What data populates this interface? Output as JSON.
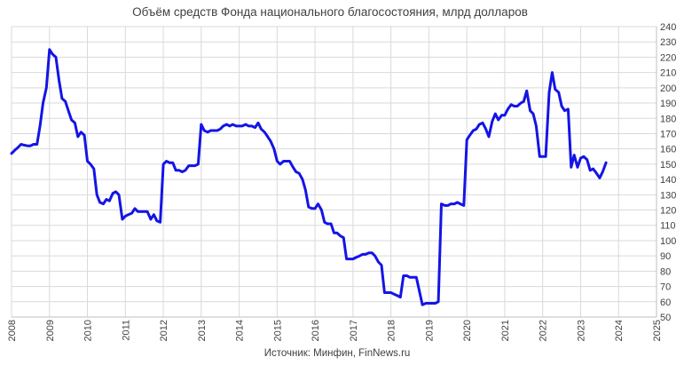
{
  "chart_data": {
    "type": "line",
    "title": "Объём средств Фонда национального благосостояния, млрд долларов",
    "source": "Источник: Минфин, FinNews.ru",
    "xlabel": "",
    "ylabel": "",
    "xlim": [
      2008,
      2025
    ],
    "ylim": [
      50,
      240
    ],
    "y_ticks": [
      50,
      60,
      70,
      80,
      90,
      100,
      110,
      120,
      130,
      140,
      150,
      160,
      170,
      180,
      190,
      200,
      210,
      220,
      230,
      240
    ],
    "x_ticks": [
      "2008",
      "2009",
      "2010",
      "2011",
      "2012",
      "2013",
      "2014",
      "2015",
      "2016",
      "2017",
      "2018",
      "2019",
      "2020",
      "2021",
      "2022",
      "2023",
      "2024",
      "2025"
    ],
    "y_axis_position": "right",
    "grid": true,
    "series": [
      {
        "color": "#1414e6",
        "points": [
          [
            2008.0,
            157
          ],
          [
            2008.08,
            159
          ],
          [
            2008.17,
            161
          ],
          [
            2008.25,
            163
          ],
          [
            2008.33,
            162.5
          ],
          [
            2008.42,
            162
          ],
          [
            2008.5,
            162
          ],
          [
            2008.58,
            163
          ],
          [
            2008.67,
            163
          ],
          [
            2008.75,
            175
          ],
          [
            2008.83,
            190
          ],
          [
            2008.92,
            200
          ],
          [
            2009.0,
            225
          ],
          [
            2009.08,
            222
          ],
          [
            2009.17,
            220
          ],
          [
            2009.25,
            205
          ],
          [
            2009.33,
            193
          ],
          [
            2009.42,
            191
          ],
          [
            2009.5,
            185
          ],
          [
            2009.58,
            179
          ],
          [
            2009.67,
            177
          ],
          [
            2009.75,
            168
          ],
          [
            2009.83,
            171
          ],
          [
            2009.92,
            169
          ],
          [
            2010.0,
            152
          ],
          [
            2010.08,
            150
          ],
          [
            2010.17,
            147
          ],
          [
            2010.25,
            130
          ],
          [
            2010.33,
            125
          ],
          [
            2010.42,
            124
          ],
          [
            2010.5,
            127
          ],
          [
            2010.58,
            126
          ],
          [
            2010.67,
            131
          ],
          [
            2010.75,
            132
          ],
          [
            2010.83,
            130
          ],
          [
            2010.92,
            114
          ],
          [
            2011.0,
            116
          ],
          [
            2011.08,
            117
          ],
          [
            2011.17,
            118
          ],
          [
            2011.25,
            121
          ],
          [
            2011.33,
            119
          ],
          [
            2011.42,
            119
          ],
          [
            2011.5,
            119
          ],
          [
            2011.58,
            119
          ],
          [
            2011.67,
            114
          ],
          [
            2011.75,
            117
          ],
          [
            2011.83,
            113
          ],
          [
            2011.92,
            112
          ],
          [
            2012.0,
            150
          ],
          [
            2012.08,
            152
          ],
          [
            2012.17,
            151
          ],
          [
            2012.25,
            151
          ],
          [
            2012.33,
            146
          ],
          [
            2012.42,
            146
          ],
          [
            2012.5,
            145
          ],
          [
            2012.58,
            146
          ],
          [
            2012.67,
            149
          ],
          [
            2012.75,
            149
          ],
          [
            2012.83,
            149
          ],
          [
            2012.92,
            150
          ],
          [
            2013.0,
            176
          ],
          [
            2013.08,
            172
          ],
          [
            2013.17,
            171
          ],
          [
            2013.25,
            172
          ],
          [
            2013.33,
            172
          ],
          [
            2013.42,
            172
          ],
          [
            2013.5,
            173
          ],
          [
            2013.58,
            175
          ],
          [
            2013.67,
            176
          ],
          [
            2013.75,
            175
          ],
          [
            2013.83,
            176
          ],
          [
            2013.92,
            175
          ],
          [
            2014.0,
            175
          ],
          [
            2014.08,
            175
          ],
          [
            2014.17,
            176
          ],
          [
            2014.25,
            175
          ],
          [
            2014.33,
            175
          ],
          [
            2014.42,
            174
          ],
          [
            2014.5,
            177
          ],
          [
            2014.58,
            173
          ],
          [
            2014.67,
            171
          ],
          [
            2014.75,
            168
          ],
          [
            2014.83,
            165
          ],
          [
            2014.92,
            160
          ],
          [
            2015.0,
            152
          ],
          [
            2015.08,
            150
          ],
          [
            2015.17,
            152
          ],
          [
            2015.25,
            152
          ],
          [
            2015.33,
            152
          ],
          [
            2015.42,
            148
          ],
          [
            2015.5,
            145
          ],
          [
            2015.58,
            144
          ],
          [
            2015.67,
            140
          ],
          [
            2015.75,
            133
          ],
          [
            2015.83,
            122
          ],
          [
            2015.92,
            121
          ],
          [
            2016.0,
            121
          ],
          [
            2016.08,
            124
          ],
          [
            2016.17,
            120
          ],
          [
            2016.25,
            112
          ],
          [
            2016.33,
            111
          ],
          [
            2016.42,
            111
          ],
          [
            2016.5,
            105
          ],
          [
            2016.58,
            105
          ],
          [
            2016.67,
            103
          ],
          [
            2016.75,
            102
          ],
          [
            2016.83,
            88
          ],
          [
            2016.92,
            88
          ],
          [
            2017.0,
            88
          ],
          [
            2017.08,
            89
          ],
          [
            2017.17,
            90
          ],
          [
            2017.25,
            91
          ],
          [
            2017.33,
            91
          ],
          [
            2017.42,
            92
          ],
          [
            2017.5,
            92
          ],
          [
            2017.58,
            90
          ],
          [
            2017.67,
            86
          ],
          [
            2017.75,
            84
          ],
          [
            2017.83,
            66
          ],
          [
            2017.92,
            66
          ],
          [
            2018.0,
            66
          ],
          [
            2018.08,
            65
          ],
          [
            2018.17,
            64
          ],
          [
            2018.25,
            63
          ],
          [
            2018.33,
            77
          ],
          [
            2018.42,
            77
          ],
          [
            2018.5,
            76
          ],
          [
            2018.58,
            76
          ],
          [
            2018.67,
            76
          ],
          [
            2018.75,
            67
          ],
          [
            2018.83,
            58
          ],
          [
            2018.92,
            59
          ],
          [
            2019.0,
            59
          ],
          [
            2019.08,
            59
          ],
          [
            2019.17,
            59
          ],
          [
            2019.25,
            60
          ],
          [
            2019.33,
            124
          ],
          [
            2019.42,
            123
          ],
          [
            2019.5,
            123
          ],
          [
            2019.58,
            124
          ],
          [
            2019.67,
            124
          ],
          [
            2019.75,
            125
          ],
          [
            2019.83,
            124
          ],
          [
            2019.92,
            123
          ],
          [
            2020.0,
            166
          ],
          [
            2020.08,
            169
          ],
          [
            2020.17,
            172
          ],
          [
            2020.25,
            173
          ],
          [
            2020.33,
            176
          ],
          [
            2020.42,
            177
          ],
          [
            2020.5,
            173
          ],
          [
            2020.58,
            168
          ],
          [
            2020.67,
            178
          ],
          [
            2020.75,
            183
          ],
          [
            2020.83,
            179
          ],
          [
            2020.92,
            182
          ],
          [
            2021.0,
            182
          ],
          [
            2021.08,
            186
          ],
          [
            2021.17,
            189
          ],
          [
            2021.25,
            188
          ],
          [
            2021.33,
            188
          ],
          [
            2021.42,
            190
          ],
          [
            2021.5,
            191
          ],
          [
            2021.58,
            198
          ],
          [
            2021.67,
            185
          ],
          [
            2021.75,
            183
          ],
          [
            2021.83,
            175
          ],
          [
            2021.92,
            155
          ],
          [
            2022.0,
            155
          ],
          [
            2022.08,
            155
          ],
          [
            2022.17,
            197
          ],
          [
            2022.25,
            210
          ],
          [
            2022.33,
            199
          ],
          [
            2022.42,
            197
          ],
          [
            2022.5,
            188
          ],
          [
            2022.58,
            185
          ],
          [
            2022.67,
            186
          ],
          [
            2022.75,
            148
          ],
          [
            2022.83,
            156
          ],
          [
            2022.92,
            148
          ],
          [
            2023.0,
            154
          ],
          [
            2023.08,
            155
          ],
          [
            2023.17,
            153
          ],
          [
            2023.25,
            146
          ],
          [
            2023.33,
            147
          ],
          [
            2023.42,
            144
          ],
          [
            2023.5,
            141
          ],
          [
            2023.58,
            145
          ],
          [
            2023.67,
            151
          ]
        ]
      }
    ]
  }
}
